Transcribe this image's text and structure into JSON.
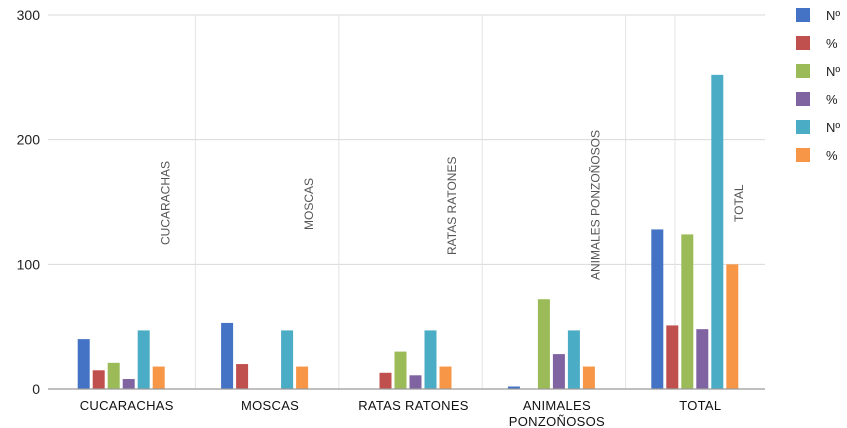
{
  "chart_data": {
    "type": "bar",
    "categories": [
      "CUCARACHAS",
      "MOSCAS",
      "RATAS  RATONES",
      "ANIMALES PONZOÑOSOS",
      "TOTAL"
    ],
    "category_label_lines": [
      [
        "CUCARACHAS"
      ],
      [
        "MOSCAS"
      ],
      [
        "RATAS  RATONES"
      ],
      [
        "ANIMALES",
        "PONZOÑOSOS"
      ],
      [
        "TOTAL"
      ]
    ],
    "rotated_labels": [
      "CUCARACHAS",
      "MOSCAS",
      "RATAS  RATONES",
      "ANIMALES PONZOÑOSOS",
      "TOTAL"
    ],
    "series": [
      {
        "name": "Nº",
        "color": "#4472c4",
        "values": [
          40,
          53,
          null,
          2,
          128
        ]
      },
      {
        "name": "%",
        "color": "#c0504d",
        "values": [
          15,
          20,
          13,
          null,
          51
        ]
      },
      {
        "name": "Nº",
        "color": "#9bbb59",
        "values": [
          21,
          null,
          30,
          72,
          124
        ]
      },
      {
        "name": "%",
        "color": "#8064a2",
        "values": [
          8,
          null,
          11,
          28,
          48
        ]
      },
      {
        "name": "Nº",
        "color": "#4bacc6",
        "values": [
          47,
          47,
          47,
          47,
          252
        ]
      },
      {
        "name": "%",
        "color": "#f79646",
        "values": [
          18,
          18,
          18,
          18,
          100
        ]
      }
    ],
    "yticks": [
      0,
      100,
      200,
      300
    ],
    "ylim": [
      0,
      300
    ],
    "grid": true,
    "legend": "top-right"
  }
}
